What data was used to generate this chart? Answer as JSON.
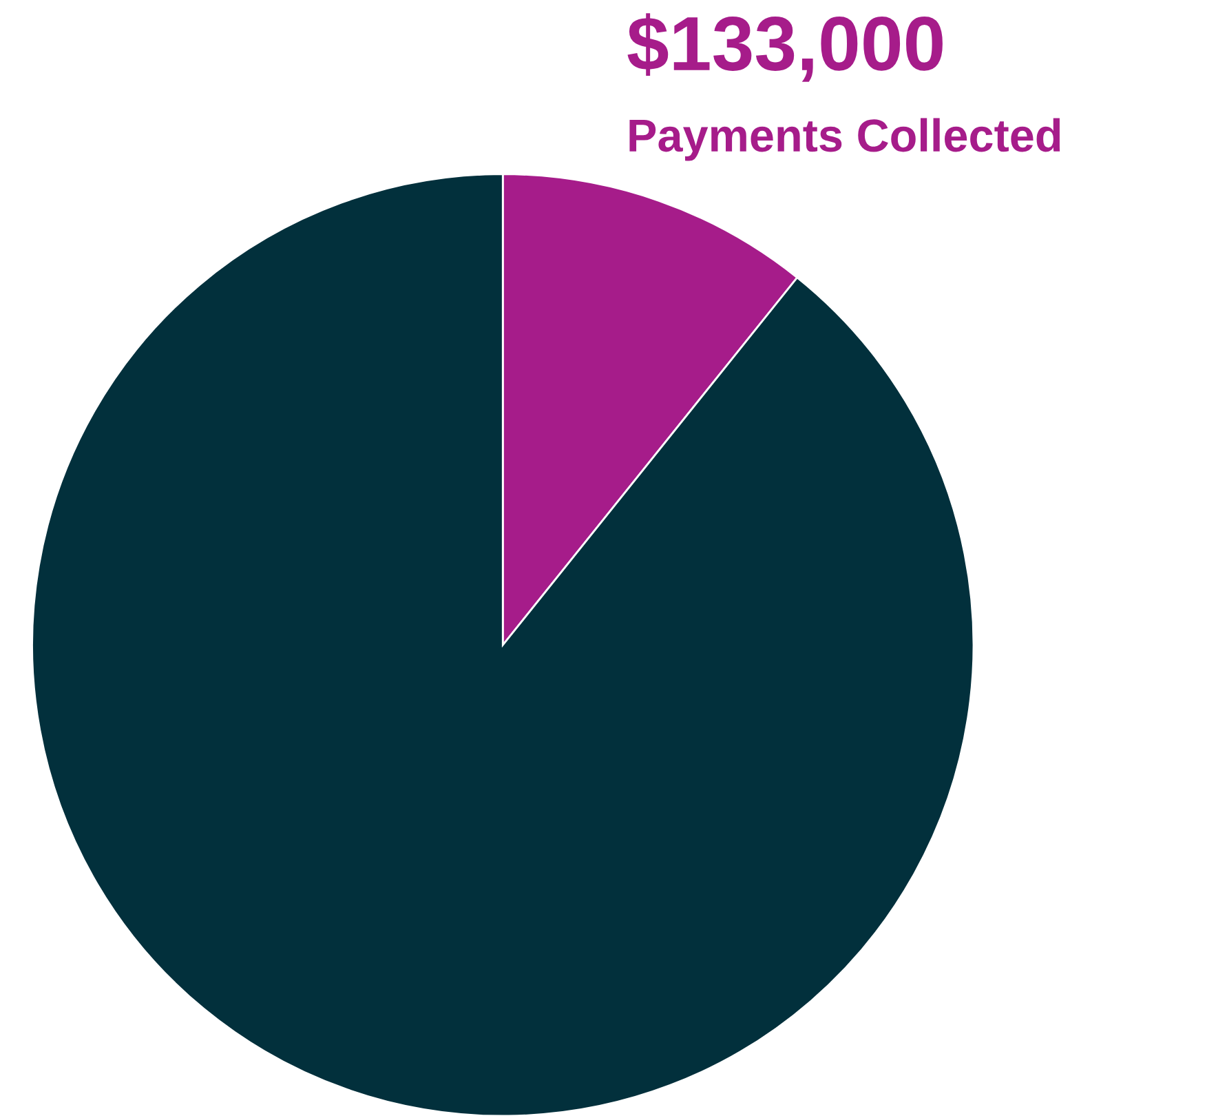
{
  "chart_data": {
    "type": "pie",
    "categories": [
      "Payments Collected",
      null
    ],
    "values": [
      133000,
      1104000
    ],
    "colors": [
      "#a61c8a",
      "#02303c"
    ],
    "value_labels": [
      "$133,000",
      null
    ],
    "legend": false
  }
}
